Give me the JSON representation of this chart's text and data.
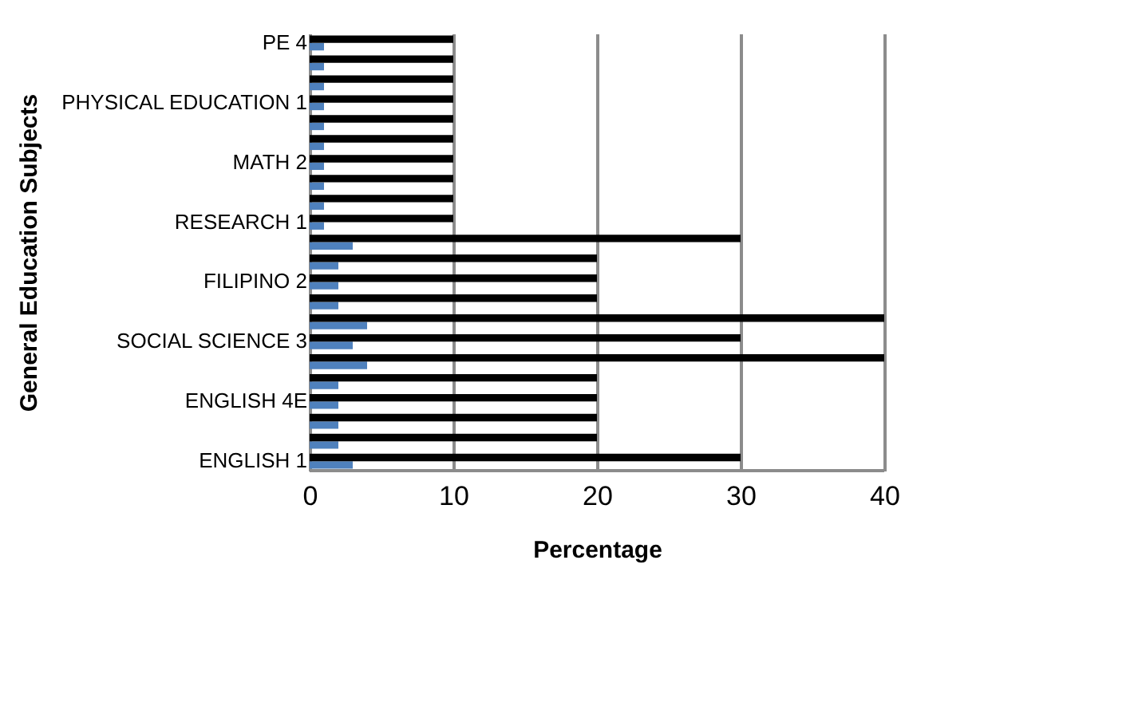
{
  "chart_data": {
    "type": "bar",
    "orientation": "horizontal",
    "xlabel": "Percentage",
    "ylabel": "General Education Subjects",
    "categories": [
      "PE 4",
      null,
      null,
      "PHYSICAL EDUCATION 1",
      null,
      null,
      "MATH 2",
      null,
      null,
      "RESEARCH 1",
      null,
      null,
      "FILIPINO 2",
      null,
      null,
      "SOCIAL SCIENCE 3",
      null,
      null,
      "ENGLISH 4E",
      null,
      null,
      "ENGLISH 1"
    ],
    "series": [
      {
        "color": "#4f81bd",
        "values": [
          1,
          1,
          1,
          1,
          1,
          1,
          1,
          1,
          1,
          1,
          3,
          2,
          2,
          2,
          4,
          3,
          4,
          2,
          2,
          2,
          2,
          3
        ]
      },
      {
        "color": "#000000",
        "values": [
          10,
          10,
          10,
          10,
          10,
          10,
          10,
          10,
          10,
          10,
          30,
          20,
          20,
          20,
          40,
          30,
          40,
          20,
          20,
          20,
          20,
          30
        ]
      }
    ],
    "xlim": [
      0,
      40
    ],
    "xticks": [
      0,
      10,
      20,
      30,
      40
    ],
    "grid": "x"
  }
}
